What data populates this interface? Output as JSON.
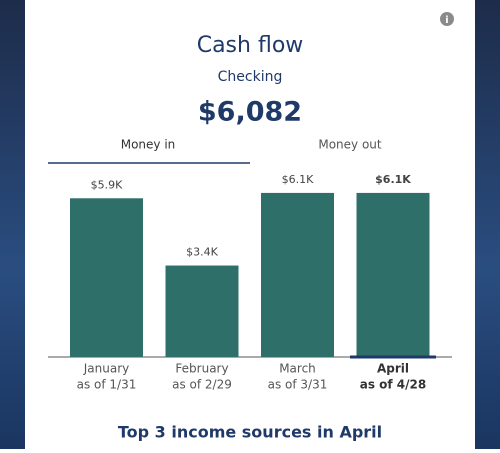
{
  "header": {
    "title": "Cash flow",
    "subtitle": "Checking",
    "amount": "$6,082"
  },
  "tabs": [
    "Money in",
    "Money out"
  ],
  "chart_data": {
    "type": "bar",
    "categories": [
      "January",
      "February",
      "March",
      "April"
    ],
    "category_notes": [
      "as of 1/31",
      "as of 2/29",
      "as of 3/31",
      "as of 4/28"
    ],
    "values": [
      5.9,
      3.4,
      6.1,
      6.1
    ],
    "value_labels": [
      "$5.9K",
      "$3.4K",
      "$6.1K",
      "$6.1K"
    ],
    "color": "#2e6f69",
    "highlight_index": 3
  },
  "footer": {
    "heading": "Top 3 income sources in April"
  }
}
